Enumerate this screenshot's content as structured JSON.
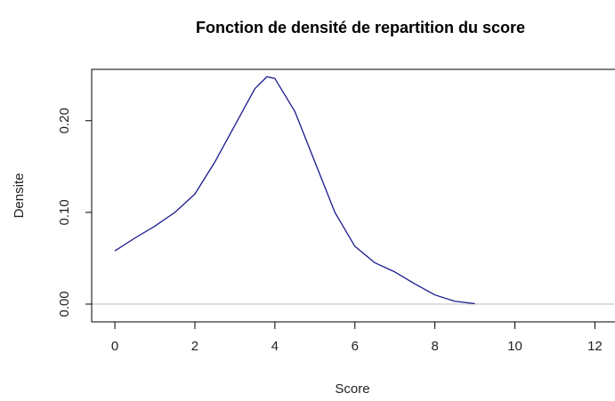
{
  "chart_data": {
    "type": "line",
    "title": "Fonction de densité de repartition du score",
    "x_label": "Score",
    "y_label": "Densite",
    "x": [
      0,
      0.5,
      1,
      1.5,
      2,
      2.5,
      3,
      3.5,
      3.8,
      4,
      4.5,
      5,
      5.5,
      6,
      6.5,
      7,
      7.5,
      8,
      8.5,
      9
    ],
    "series": [
      {
        "color": "#1a1a8c",
        "values": [
          0.058,
          0.072,
          0.085,
          0.1,
          0.12,
          0.155,
          0.195,
          0.235,
          0.248,
          0.246,
          0.21,
          0.155,
          0.1,
          0.063,
          0.045,
          0.035,
          0.022,
          0.01,
          0.003,
          0.0005
        ]
      }
    ],
    "xlim": [
      -0.58,
      12.48
    ],
    "ylim": [
      -0.0194,
      0.256
    ],
    "xticks": [
      0,
      2,
      4,
      6,
      8,
      10,
      12
    ],
    "yticks": [
      {
        "value": 0,
        "label": "0.00"
      },
      {
        "value": 0.1,
        "label": "0.10"
      },
      {
        "value": 0.2,
        "label": "0.20"
      }
    ],
    "baseline": {
      "value": 0,
      "color": "#bbbbbb"
    }
  }
}
